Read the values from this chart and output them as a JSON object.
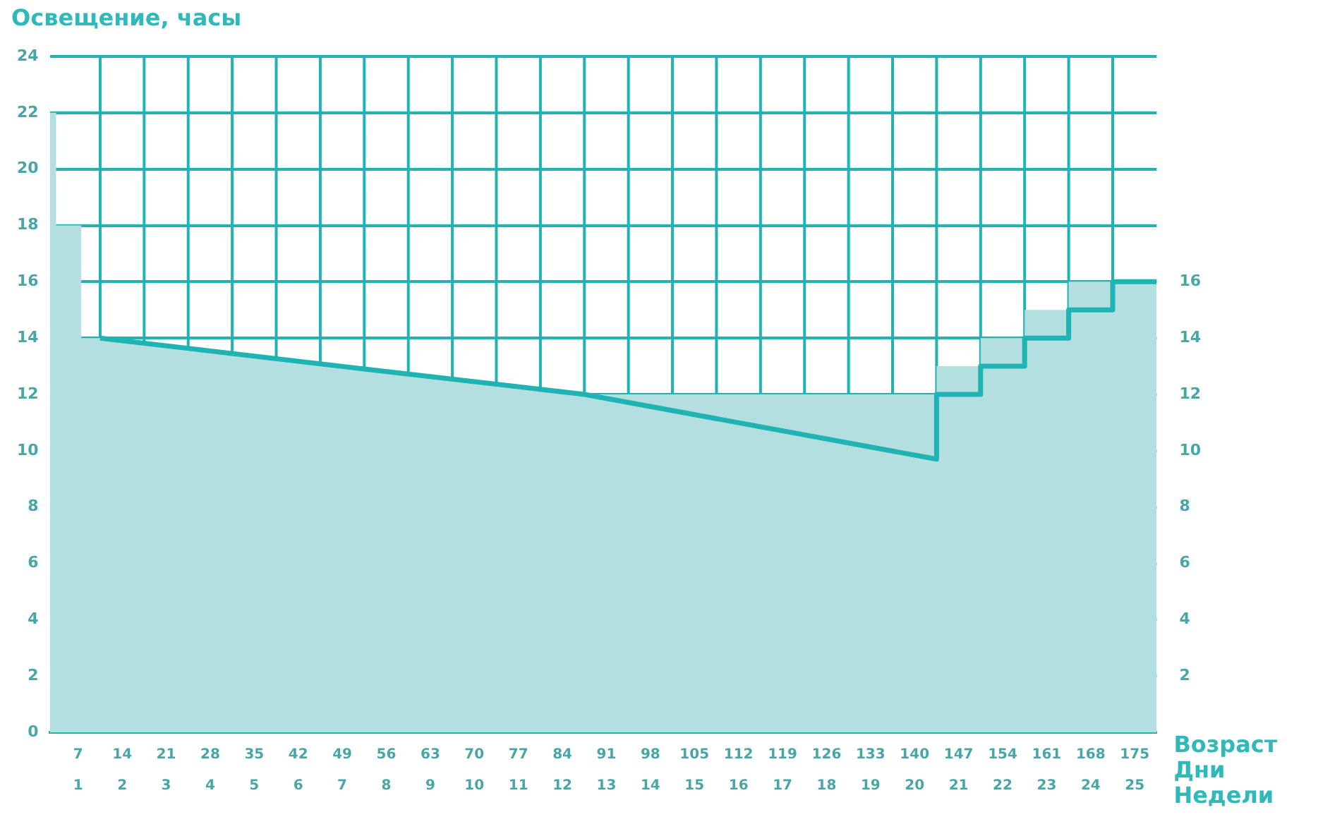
{
  "chart_data": {
    "type": "line",
    "ylabel": "Освещение, часы",
    "xlabel": "Возраст",
    "annotations": [
      "Дни",
      "Недели"
    ],
    "xlim": [
      2.5,
      178.5
    ],
    "xticks": [
      7,
      14,
      21,
      28,
      35,
      42,
      49,
      56,
      63,
      70,
      77,
      84,
      91,
      98,
      105,
      112,
      119,
      126,
      133,
      140,
      147,
      154,
      161,
      168,
      175
    ],
    "x2lim": [
      0.3571,
      25.5
    ],
    "x2ticks": [
      1,
      2,
      3,
      4,
      5,
      6,
      7,
      8,
      9,
      10,
      11,
      12,
      13,
      14,
      15,
      16,
      17,
      18,
      19,
      20,
      21,
      22,
      23,
      24,
      25
    ],
    "ylim": [
      0,
      24
    ],
    "yticks": [
      0,
      2,
      4,
      6,
      8,
      10,
      12,
      14,
      16,
      18,
      20,
      22,
      24
    ],
    "y2lim": [
      0,
      24
    ],
    "y2ticks": [
      2,
      4,
      6,
      8,
      10,
      12,
      14,
      16
    ],
    "grid": true,
    "legend": false,
    "marker": "none",
    "series": [
      {
        "type": "area",
        "color": "#b3dfe0",
        "x": [
          2.5,
          3.5,
          3.5,
          7.5,
          7.5,
          10.5,
          52.5,
          87.5,
          143.5,
          143.5,
          150.5,
          150.5,
          157.5,
          157.5,
          164.5,
          164.5,
          178.5
        ],
        "values": [
          22,
          22,
          18,
          18,
          14,
          14,
          12.9,
          12,
          12,
          13,
          13,
          14,
          14,
          15,
          15,
          16,
          16
        ]
      },
      {
        "type": "line",
        "color": "#1fb3b3",
        "x": [
          10.5,
          52.5,
          87.5,
          143.5,
          143.5,
          150.5,
          150.5,
          157.5,
          157.5,
          164.5,
          164.5,
          171.5,
          171.5,
          178.5
        ],
        "values": [
          14,
          12.9,
          12,
          9.7,
          12,
          12,
          13,
          13,
          14,
          14,
          15,
          15,
          16,
          16
        ]
      }
    ]
  }
}
